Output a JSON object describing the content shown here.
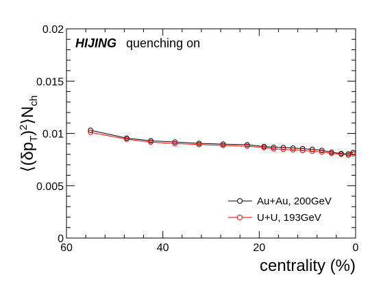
{
  "chart_data": {
    "type": "line",
    "title": "",
    "xlabel": "centrality (%)",
    "ylabel": "⟨(δp_T)^2⟩N_ch",
    "xlim": [
      60,
      0
    ],
    "x_reversed": true,
    "ylim": [
      0,
      0.02
    ],
    "x_ticks": [
      "60",
      "40",
      "20",
      "0"
    ],
    "y_ticks": [
      "0",
      "0.005",
      "0.01",
      "0.015",
      "0.02"
    ],
    "grid": false,
    "annotation": {
      "generator": "HIJING",
      "text": "quenching on"
    },
    "legend_position": "bottom-right",
    "x": [
      55,
      47.5,
      42.5,
      37.5,
      32.5,
      27.5,
      22.5,
      19,
      17,
      15,
      13,
      11,
      9,
      7,
      5,
      3,
      1.5,
      0.5
    ],
    "series": [
      {
        "name": "Au+Au, 200GeV",
        "color": "#000000",
        "marker": "open-circle",
        "values": [
          0.0103,
          0.00955,
          0.0093,
          0.00918,
          0.00905,
          0.00898,
          0.00892,
          0.00875,
          0.00868,
          0.00865,
          0.0086,
          0.00855,
          0.00848,
          0.00838,
          0.0082,
          0.00808,
          0.00805,
          0.00818
        ]
      },
      {
        "name": "U+U, 193GeV",
        "color": "#ee0000",
        "marker": "open-circle",
        "values": [
          0.0101,
          0.00945,
          0.00917,
          0.00903,
          0.00893,
          0.00885,
          0.00878,
          0.00865,
          0.00853,
          0.00848,
          0.00843,
          0.00837,
          0.0083,
          0.00822,
          0.0081,
          0.008,
          0.00793,
          0.00805
        ]
      }
    ]
  }
}
